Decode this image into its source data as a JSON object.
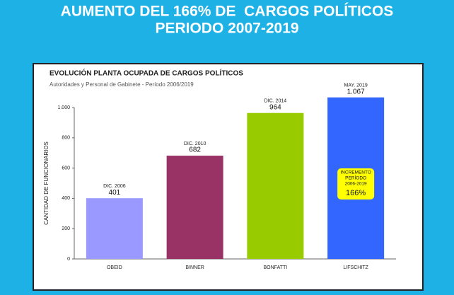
{
  "header": {
    "title_lines": [
      "AUMENTO DEL 166% DE  CARGOS POLÍTICOS",
      "PERIODO 2007-2019"
    ]
  },
  "chart_data": {
    "type": "bar",
    "title": "EVOLUCIÓN PLANTA OCUPADA DE CARGOS POLÍTICOS",
    "subtitle": "Autoridades y Personal de Gabinete - Período 2006/2019",
    "y_label": "CANTIDAD DE FUNCIONARIOS",
    "categories": [
      "OBEID",
      "BINNER",
      "BONFATTI",
      "LIFSCHITZ"
    ],
    "period_labels": [
      "DIC. 2006",
      "DIC. 2010",
      "DIC. 2014",
      "MAY. 2019"
    ],
    "values": [
      401,
      682,
      964,
      1067
    ],
    "value_labels": [
      "401",
      "682",
      "964",
      "1.067"
    ],
    "colors": [
      "#9999ff",
      "#993366",
      "#99cc00",
      "#3366ff"
    ],
    "ylim": [
      0,
      1000
    ],
    "yticks": [
      0,
      200,
      400,
      600,
      800,
      {
        "value": 1000,
        "label": "1.000"
      }
    ],
    "grid": false,
    "annotation": {
      "lines": [
        "INCREMENTO",
        "PERÍODO",
        "2006-2019"
      ],
      "value": "166%"
    }
  }
}
